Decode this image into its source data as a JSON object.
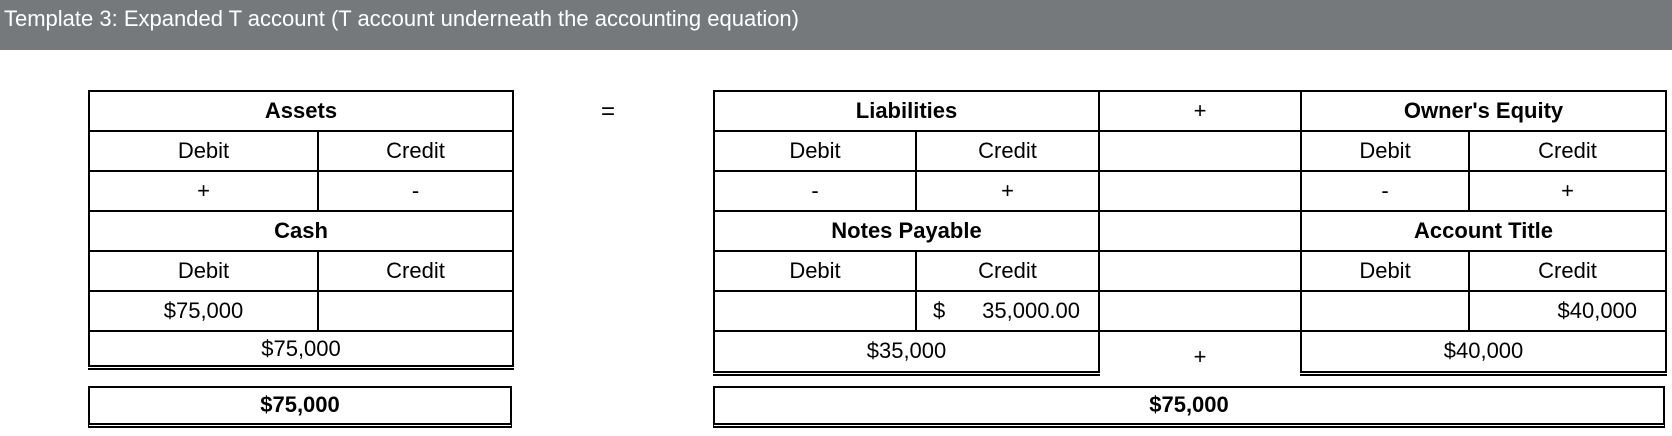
{
  "header": {
    "title": "Template 3: Expanded T account (T account underneath the accounting equation)"
  },
  "equation": {
    "equals": "=",
    "plus_top": "+",
    "plus_bottom": "+"
  },
  "assets": {
    "title": "Assets",
    "debit_label": "Debit",
    "credit_label": "Credit",
    "debit_sign": "+",
    "credit_sign": "-",
    "account_title": "Cash",
    "acct_debit_label": "Debit",
    "acct_credit_label": "Credit",
    "debit_value": "$75,000",
    "credit_value": "",
    "balance": "$75,000",
    "total": "$75,000"
  },
  "liabilities": {
    "title": "Liabilities",
    "debit_label": "Debit",
    "credit_label": "Credit",
    "debit_sign": "-",
    "credit_sign": "+",
    "account_title": "Notes Payable",
    "acct_debit_label": "Debit",
    "acct_credit_label": "Credit",
    "debit_value": "",
    "credit_currency": "$",
    "credit_value": "35,000.00",
    "balance": "$35,000"
  },
  "equity": {
    "title": "Owner's Equity",
    "debit_label": "Debit",
    "credit_label": "Credit",
    "debit_sign": "-",
    "credit_sign": "+",
    "account_title": "Account Title",
    "acct_debit_label": "Debit",
    "acct_credit_label": "Credit",
    "debit_value": "",
    "credit_value": "$40,000",
    "balance": "$40,000"
  },
  "right_total": "$75,000"
}
